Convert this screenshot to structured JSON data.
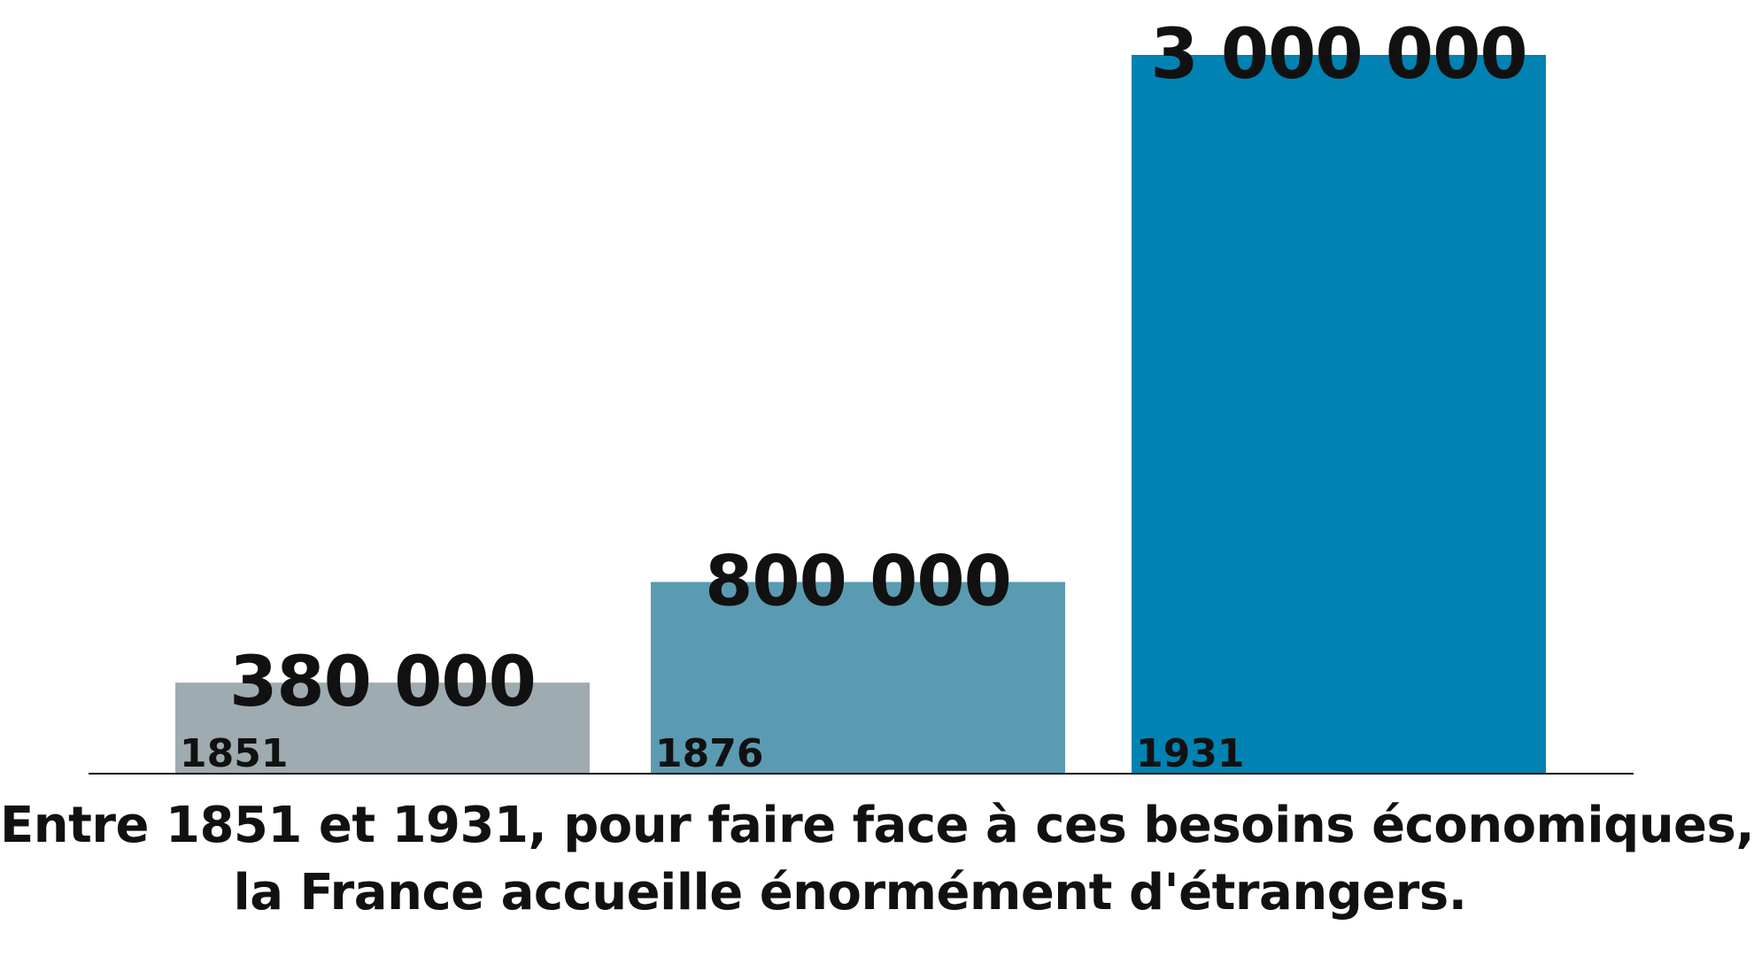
{
  "chart_data": {
    "type": "bar",
    "categories": [
      "1851",
      "1876",
      "1931"
    ],
    "values": [
      380000,
      800000,
      3000000
    ],
    "value_labels": [
      "380 000",
      "800 000",
      "3 000 000"
    ],
    "colors": [
      "#9eabb0",
      "#5a9bb1",
      "#0083b2"
    ],
    "title": "",
    "xlabel": "",
    "ylabel": "",
    "ylim": [
      0,
      3000000
    ],
    "grid": false,
    "legend": "none"
  },
  "caption": {
    "line1": "Entre 1851 et 1931, pour faire face à ces besoins économiques,",
    "line2": "la France accueille énormément d'étrangers."
  }
}
